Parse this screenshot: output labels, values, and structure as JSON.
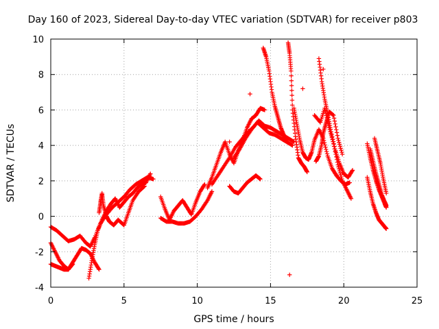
{
  "chart_data": {
    "type": "scatter",
    "title": "Day 160 of 2023, Sidereal Day-to-day VTEC variation (SDTVAR) for receiver p803",
    "xlabel": "GPS time / hours",
    "ylabel": "SDTVAR / TECUs",
    "xlim": [
      0,
      25
    ],
    "ylim": [
      -4,
      10
    ],
    "xticks": [
      0,
      5,
      10,
      15,
      20,
      25
    ],
    "yticks": [
      -4,
      -2,
      0,
      2,
      4,
      6,
      8,
      10
    ],
    "grid": true,
    "marker": "+",
    "color": "#ff0000",
    "tracks": [
      {
        "x": [
          0.0,
          0.4,
          0.8,
          1.2,
          1.6,
          2.0,
          2.4,
          2.7,
          3.0,
          3.4,
          3.8,
          4.2,
          4.6,
          5.0,
          5.4,
          5.8,
          6.2,
          6.6,
          7.0
        ],
        "y": [
          -0.6,
          -0.8,
          -1.1,
          -1.4,
          -1.3,
          -1.1,
          -1.5,
          -1.7,
          -1.2,
          -0.4,
          0.1,
          0.5,
          0.8,
          1.1,
          1.5,
          1.8,
          2.0,
          2.2,
          2.1
        ]
      },
      {
        "x": [
          0.0,
          0.3,
          0.6,
          0.9,
          1.2,
          1.5,
          1.8,
          2.1,
          2.4,
          2.7,
          3.0,
          3.3
        ],
        "y": [
          -1.5,
          -2.0,
          -2.5,
          -2.8,
          -3.0,
          -2.6,
          -2.2,
          -1.8,
          -1.9,
          -2.1,
          -2.6,
          -3.0
        ]
      },
      {
        "x": [
          0.0,
          0.3,
          0.6,
          0.9,
          1.2,
          1.5
        ],
        "y": [
          -2.7,
          -2.8,
          -2.9,
          -3.0,
          -3.0,
          -2.7
        ]
      },
      {
        "x": [
          2.6,
          2.8,
          3.0,
          3.2,
          3.5,
          3.8,
          4.1,
          4.4,
          4.7,
          5.0,
          5.3,
          5.6,
          5.9,
          6.2,
          6.5,
          6.8
        ],
        "y": [
          -3.5,
          -2.5,
          -1.6,
          -0.8,
          -0.2,
          0.3,
          0.7,
          1.0,
          0.5,
          0.8,
          1.1,
          1.3,
          1.6,
          1.8,
          1.9,
          2.4
        ]
      },
      {
        "x": [
          3.3,
          3.4,
          3.5,
          3.6,
          3.8,
          4.0,
          4.3,
          4.6,
          5.0,
          5.3,
          5.6,
          6.0,
          6.4
        ],
        "y": [
          0.2,
          0.8,
          1.3,
          0.6,
          0.0,
          -0.3,
          -0.5,
          -0.2,
          -0.5,
          0.2,
          0.9,
          1.4,
          1.7
        ]
      },
      {
        "x": [
          7.5,
          7.8,
          8.1,
          8.4,
          8.7,
          9.0,
          9.3,
          9.6,
          9.9,
          10.2,
          10.5
        ],
        "y": [
          1.1,
          0.4,
          -0.2,
          0.3,
          0.6,
          0.9,
          0.5,
          0.1,
          0.8,
          1.4,
          1.8
        ]
      },
      {
        "x": [
          7.5,
          7.9,
          8.3,
          8.7,
          9.1,
          9.5,
          9.9,
          10.3,
          10.7,
          11.0
        ],
        "y": [
          -0.1,
          -0.3,
          -0.3,
          -0.4,
          -0.4,
          -0.3,
          0.0,
          0.4,
          0.9,
          1.4
        ]
      },
      {
        "x": [
          10.7,
          11.0,
          11.3,
          11.6,
          11.9,
          12.2,
          12.5,
          12.8,
          13.1,
          13.4,
          13.7,
          14.0,
          14.3,
          14.6
        ],
        "y": [
          1.6,
          2.2,
          2.9,
          3.6,
          4.2,
          3.5,
          3.0,
          3.7,
          4.3,
          5.0,
          5.5,
          5.7,
          6.1,
          6.0
        ]
      },
      {
        "x": [
          11.0,
          11.4,
          11.8,
          12.2,
          12.6,
          13.0,
          13.4,
          13.8,
          14.2,
          14.6,
          15.0,
          15.4,
          15.8,
          16.2,
          16.6
        ],
        "y": [
          1.8,
          2.3,
          2.8,
          3.3,
          3.9,
          4.3,
          4.7,
          5.0,
          5.4,
          5.1,
          5.0,
          4.8,
          4.6,
          4.4,
          4.2
        ]
      },
      {
        "x": [
          12.2,
          12.5,
          12.8,
          13.1,
          13.4,
          13.7,
          14.0,
          14.3
        ],
        "y": [
          1.7,
          1.4,
          1.3,
          1.6,
          1.9,
          2.1,
          2.3,
          2.1
        ]
      },
      {
        "x": [
          12.5,
          12.9,
          13.3,
          13.7,
          14.1,
          14.5,
          14.9,
          15.3,
          15.7,
          16.1,
          16.5
        ],
        "y": [
          3.3,
          3.8,
          4.4,
          4.9,
          5.3,
          5.0,
          4.7,
          4.6,
          4.4,
          4.2,
          4.0
        ]
      },
      {
        "x": [
          14.5,
          14.7,
          14.9,
          15.1,
          15.3,
          15.5,
          15.7,
          15.9,
          16.1
        ],
        "y": [
          9.5,
          9.0,
          8.2,
          7.0,
          6.2,
          5.6,
          5.0,
          4.6,
          4.3
        ]
      },
      {
        "x": [
          16.2,
          16.3,
          16.4,
          16.5,
          16.7,
          16.9,
          17.1,
          17.3,
          17.5
        ],
        "y": [
          9.8,
          9.2,
          8.2,
          6.0,
          4.5,
          3.3,
          3.0,
          2.8,
          2.5
        ]
      },
      {
        "x": [
          16.6,
          16.8,
          17.0,
          17.2,
          17.4,
          17.6,
          17.8,
          18.0,
          18.3,
          18.6,
          18.9,
          19.2,
          19.5,
          19.8,
          20.1,
          20.4
        ],
        "y": [
          6.1,
          5.2,
          4.3,
          3.6,
          3.3,
          3.2,
          3.6,
          4.3,
          4.9,
          4.4,
          3.4,
          2.7,
          2.3,
          2.0,
          1.8,
          1.9
        ]
      },
      {
        "x": [
          18.3,
          18.5,
          18.7,
          18.9,
          19.1,
          19.4,
          19.7,
          20.0,
          20.3,
          20.6
        ],
        "y": [
          8.9,
          7.6,
          6.6,
          5.8,
          4.9,
          3.8,
          3.0,
          2.4,
          2.2,
          2.6
        ]
      },
      {
        "x": [
          18.0,
          18.4,
          18.7,
          19.0,
          19.3,
          19.6,
          19.9,
          20.2,
          20.5
        ],
        "y": [
          5.7,
          5.3,
          6.1,
          5.0,
          4.1,
          2.9,
          2.0,
          1.5,
          1.0
        ]
      },
      {
        "x": [
          18.1,
          18.3,
          18.5,
          18.6,
          18.8,
          19.0,
          19.3,
          19.6,
          19.9
        ],
        "y": [
          3.1,
          3.4,
          4.1,
          4.7,
          5.3,
          5.9,
          5.7,
          4.4,
          3.5
        ]
      },
      {
        "x": [
          21.6,
          21.8,
          22.0,
          22.2,
          22.4,
          22.6,
          22.8,
          22.9
        ],
        "y": [
          4.1,
          3.3,
          2.6,
          2.0,
          1.5,
          1.1,
          0.7,
          0.5
        ]
      },
      {
        "x": [
          21.6,
          21.8,
          22.0,
          22.2,
          22.4,
          22.6,
          22.8,
          22.9
        ],
        "y": [
          2.2,
          1.4,
          0.7,
          0.2,
          -0.2,
          -0.4,
          -0.6,
          -0.7
        ]
      },
      {
        "x": [
          21.8,
          22.0,
          22.2,
          22.4,
          22.6,
          22.8,
          22.9
        ],
        "y": [
          3.8,
          3.1,
          2.4,
          1.8,
          1.2,
          0.8,
          0.6
        ]
      },
      {
        "x": [
          22.1,
          22.3,
          22.5,
          22.7,
          22.9
        ],
        "y": [
          4.4,
          3.7,
          3.0,
          2.1,
          1.3
        ]
      }
    ],
    "outliers": {
      "x": [
        16.3,
        17.2,
        13.6,
        12.2,
        18.6
      ],
      "y": [
        -3.3,
        7.2,
        6.9,
        4.2,
        8.3
      ]
    }
  }
}
